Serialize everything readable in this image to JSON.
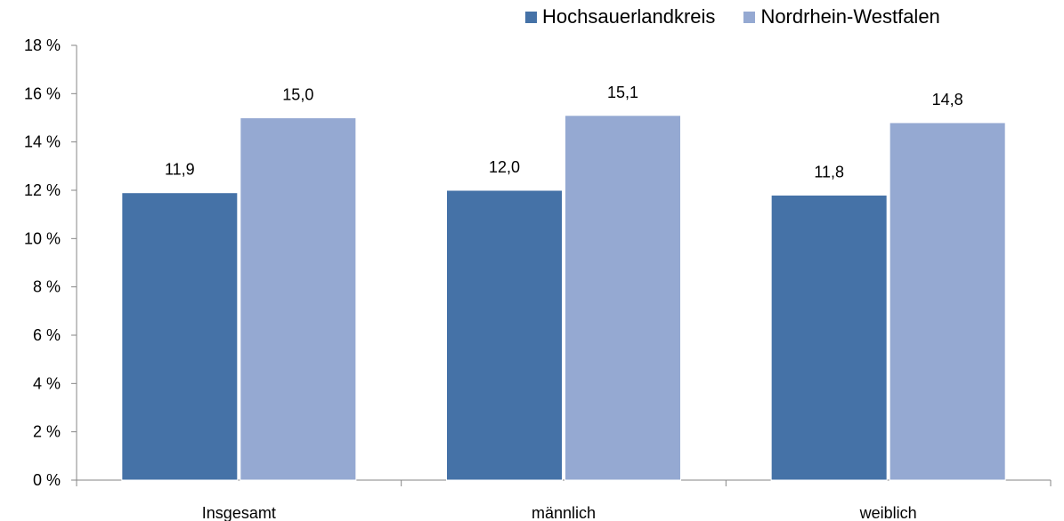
{
  "chart_data": {
    "type": "bar",
    "categories": [
      "Insgesamt",
      "männlich",
      "weiblich"
    ],
    "series": [
      {
        "name": "Hochsauerlandkreis",
        "values": [
          11.9,
          12.0,
          11.8
        ],
        "labels": [
          "11,9",
          "12,0",
          "11,8"
        ],
        "color": "#4572a7"
      },
      {
        "name": "Nordrhein-Westfalen",
        "values": [
          15.0,
          15.1,
          14.8
        ],
        "labels": [
          "15,0",
          "15,1",
          "14,8"
        ],
        "color": "#95a9d2"
      }
    ],
    "ylim": [
      0,
      18
    ],
    "yticks": [
      0,
      2,
      4,
      6,
      8,
      10,
      12,
      14,
      16,
      18
    ],
    "ytick_labels": [
      "0 %",
      "2 %",
      "4 %",
      "6 %",
      "8 %",
      "10 %",
      "12 %",
      "14 %",
      "16 %",
      "18 %"
    ],
    "grid": false,
    "legend_position": "top-right"
  }
}
